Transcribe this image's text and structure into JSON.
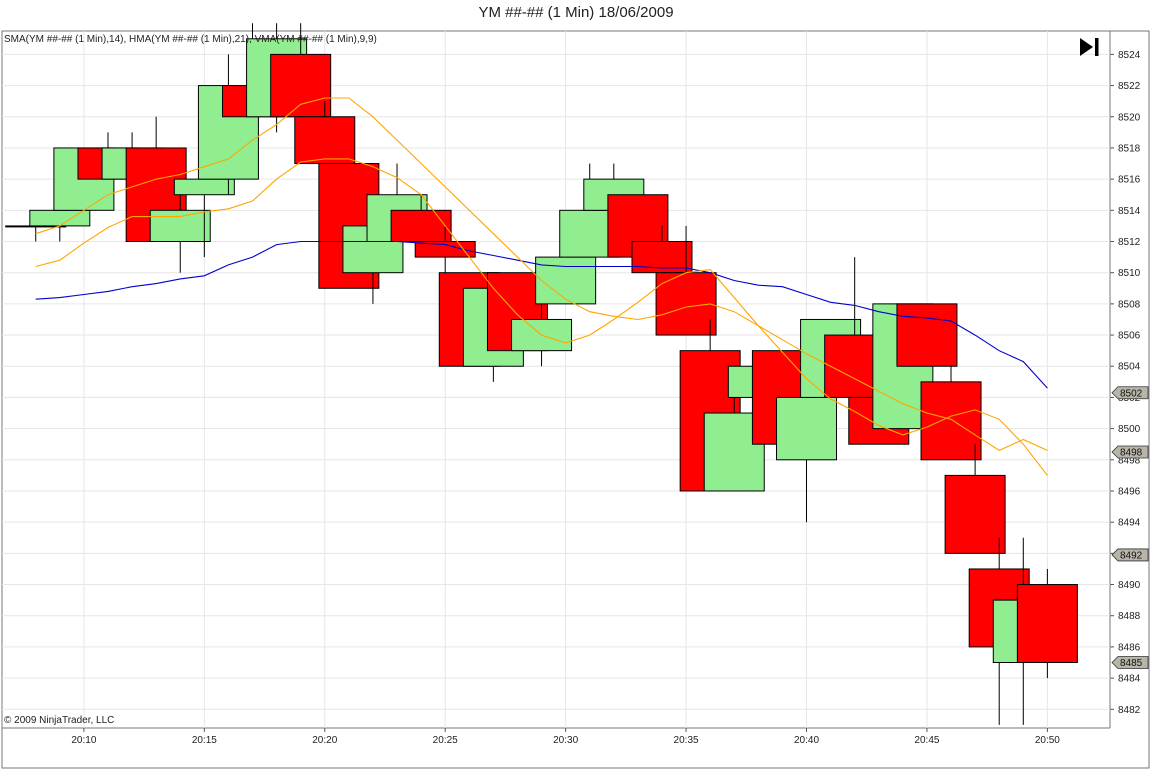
{
  "title": "YM ##-## (1 Min)  18/06/2009",
  "indicator_label": "SMA(YM ##-## (1 Min),14), HMA(YM ##-## (1 Min),21), VMA(YM ##-## (1 Min),9,9)",
  "copyright": "© 2009 NinjaTrader, LLC",
  "colors": {
    "up_fill": "#90ee90",
    "down_fill": "#ff0000",
    "candle_outline": "#000000",
    "sma_line": "#0000cd",
    "hma_line": "#ffa500",
    "vma_line": "#ffa500",
    "grid": "#e6e6e6",
    "price_tag": "#b8b4a8"
  },
  "icons": {
    "play_to_end": "skip-forward-icon"
  },
  "chart_data": {
    "type": "candlestick",
    "title": "YM ##-## (1 Min)  18/06/2009",
    "x_ticks": [
      {
        "t": 10,
        "label": "20:10"
      },
      {
        "t": 15,
        "label": "20:15"
      },
      {
        "t": 20,
        "label": "20:20"
      },
      {
        "t": 25,
        "label": "20:25"
      },
      {
        "t": 30,
        "label": "20:30"
      },
      {
        "t": 35,
        "label": "20:35"
      },
      {
        "t": 40,
        "label": "20:40"
      },
      {
        "t": 45,
        "label": "20:45"
      },
      {
        "t": 50,
        "label": "20:50"
      }
    ],
    "y_ticks": [
      8482,
      8484,
      8486,
      8488,
      8490,
      8492,
      8494,
      8496,
      8498,
      8500,
      8502,
      8504,
      8506,
      8508,
      8510,
      8512,
      8514,
      8516,
      8518,
      8520,
      8522,
      8524
    ],
    "ylim": [
      8480.8,
      8525.5
    ],
    "xlim": [
      6.6,
      52.6
    ],
    "grid": true,
    "candles": [
      {
        "t": 8.0,
        "o": 8513,
        "h": 8513,
        "l": 8512,
        "c": 8513
      },
      {
        "t": 9.0,
        "o": 8513,
        "h": 8514,
        "l": 8512,
        "c": 8514
      },
      {
        "t": 10.0,
        "o": 8514,
        "h": 8518,
        "l": 8514,
        "c": 8518
      },
      {
        "t": 11.0,
        "o": 8518,
        "h": 8519,
        "l": 8516,
        "c": 8516
      },
      {
        "t": 12.0,
        "o": 8516,
        "h": 8519,
        "l": 8516,
        "c": 8518
      },
      {
        "t": 13.0,
        "o": 8518,
        "h": 8520,
        "l": 8512,
        "c": 8512
      },
      {
        "t": 14.0,
        "o": 8512,
        "h": 8515,
        "l": 8510,
        "c": 8514
      },
      {
        "t": 15.0,
        "o": 8515,
        "h": 8517,
        "l": 8511,
        "c": 8516
      },
      {
        "t": 16.0,
        "o": 8516,
        "h": 8524,
        "l": 8515,
        "c": 8522
      },
      {
        "t": 17.0,
        "o": 8522,
        "h": 8526,
        "l": 8520,
        "c": 8520
      },
      {
        "t": 18.0,
        "o": 8520,
        "h": 8526,
        "l": 8519,
        "c": 8525
      },
      {
        "t": 19.0,
        "o": 8524,
        "h": 8526,
        "l": 8519,
        "c": 8520
      },
      {
        "t": 20.0,
        "o": 8520,
        "h": 8521,
        "l": 8517,
        "c": 8517
      },
      {
        "t": 21.0,
        "o": 8517,
        "h": 8517,
        "l": 8509,
        "c": 8509
      },
      {
        "t": 22.0,
        "o": 8510,
        "h": 8514,
        "l": 8508,
        "c": 8513
      },
      {
        "t": 23.0,
        "o": 8512,
        "h": 8517,
        "l": 8512,
        "c": 8515
      },
      {
        "t": 24.0,
        "o": 8514,
        "h": 8515,
        "l": 8511,
        "c": 8512
      },
      {
        "t": 25.0,
        "o": 8512,
        "h": 8513,
        "l": 8510,
        "c": 8511
      },
      {
        "t": 26.0,
        "o": 8510,
        "h": 8510,
        "l": 8504,
        "c": 8504
      },
      {
        "t": 27.0,
        "o": 8504,
        "h": 8510,
        "l": 8503,
        "c": 8509
      },
      {
        "t": 28.0,
        "o": 8510,
        "h": 8510,
        "l": 8505,
        "c": 8505
      },
      {
        "t": 29.0,
        "o": 8505,
        "h": 8508,
        "l": 8504,
        "c": 8507
      },
      {
        "t": 30.0,
        "o": 8508,
        "h": 8512,
        "l": 8508,
        "c": 8511
      },
      {
        "t": 31.0,
        "o": 8511,
        "h": 8517,
        "l": 8511,
        "c": 8514
      },
      {
        "t": 32.0,
        "o": 8514,
        "h": 8517,
        "l": 8511,
        "c": 8516
      },
      {
        "t": 33.0,
        "o": 8515,
        "h": 8515,
        "l": 8511,
        "c": 8511
      },
      {
        "t": 34.0,
        "o": 8512,
        "h": 8513,
        "l": 8510,
        "c": 8510
      },
      {
        "t": 35.0,
        "o": 8510,
        "h": 8513,
        "l": 8506,
        "c": 8506
      },
      {
        "t": 36.0,
        "o": 8505,
        "h": 8507,
        "l": 8496,
        "c": 8496
      },
      {
        "t": 37.0,
        "o": 8496,
        "h": 8503,
        "l": 8496,
        "c": 8501
      },
      {
        "t": 38.0,
        "o": 8502,
        "h": 8504,
        "l": 8501,
        "c": 8504
      },
      {
        "t": 39.0,
        "o": 8505,
        "h": 8505,
        "l": 8499,
        "c": 8499
      },
      {
        "t": 40.0,
        "o": 8498,
        "h": 8502,
        "l": 8494,
        "c": 8502
      },
      {
        "t": 41.0,
        "o": 8502,
        "h": 8507,
        "l": 8502,
        "c": 8507
      },
      {
        "t": 42.0,
        "o": 8506,
        "h": 8511,
        "l": 8502,
        "c": 8502
      },
      {
        "t": 43.0,
        "o": 8502,
        "h": 8504,
        "l": 8499,
        "c": 8499
      },
      {
        "t": 44.0,
        "o": 8500,
        "h": 8508,
        "l": 8500,
        "c": 8508
      },
      {
        "t": 45.0,
        "o": 8508,
        "h": 8508,
        "l": 8504,
        "c": 8504
      },
      {
        "t": 46.0,
        "o": 8503,
        "h": 8504,
        "l": 8498,
        "c": 8498
      },
      {
        "t": 47.0,
        "o": 8497,
        "h": 8499,
        "l": 8492,
        "c": 8492
      },
      {
        "t": 48.0,
        "o": 8491,
        "h": 8493,
        "l": 8481,
        "c": 8486
      },
      {
        "t": 49.0,
        "o": 8485,
        "h": 8493,
        "l": 8481,
        "c": 8489
      },
      {
        "t": 50.0,
        "o": 8490,
        "h": 8491,
        "l": 8484,
        "c": 8485
      }
    ],
    "series": [
      {
        "key": "sma",
        "x": [
          8,
          9,
          10,
          11,
          12,
          13,
          14,
          15,
          16,
          17,
          18,
          19,
          20,
          21,
          22,
          23,
          24,
          25,
          26,
          27,
          28,
          29,
          30,
          31,
          32,
          33,
          34,
          35,
          36,
          37,
          38,
          39,
          40,
          41,
          42,
          43,
          44,
          45,
          46,
          47,
          48,
          49,
          50
        ],
        "y": [
          8508.3,
          8508.4,
          8508.6,
          8508.8,
          8509.1,
          8509.3,
          8509.6,
          8509.8,
          8510.5,
          8511.0,
          8511.8,
          8512.0,
          8512.0,
          8512.0,
          8512.0,
          8512.0,
          8511.9,
          8511.8,
          8511.4,
          8511.1,
          8510.8,
          8510.5,
          8510.4,
          8510.4,
          8510.4,
          8510.4,
          8510.3,
          8510.3,
          8510.0,
          8509.5,
          8509.2,
          8509.1,
          8508.6,
          8508.1,
          8507.9,
          8507.5,
          8507.2,
          8507.1,
          8506.9,
          8506.0,
          8505.0,
          8504.3,
          8502.6
        ]
      },
      {
        "key": "hma",
        "x": [
          8,
          9,
          10,
          11,
          12,
          13,
          14,
          15,
          16,
          17,
          18,
          19,
          20,
          21,
          22,
          23,
          24,
          25,
          26,
          27,
          28,
          29,
          30,
          31,
          32,
          33,
          34,
          35,
          36,
          37,
          38,
          39,
          40,
          41,
          42,
          43,
          44,
          45,
          46,
          47,
          48,
          49,
          50
        ],
        "y": [
          8512.5,
          8513.0,
          8514.0,
          8515.0,
          8515.5,
          8516.0,
          8516.3,
          8516.8,
          8517.3,
          8518.5,
          8519.5,
          8520.8,
          8521.2,
          8521.2,
          8520.0,
          8518.5,
          8517.0,
          8515.5,
          8514.0,
          8512.5,
          8511.0,
          8509.5,
          8508.3,
          8507.5,
          8507.2,
          8507.0,
          8507.3,
          8507.8,
          8508.0,
          8507.5,
          8506.6,
          8505.7,
          8504.8,
          8504.0,
          8503.2,
          8502.4,
          8501.6,
          8501.0,
          8500.6,
          8499.6,
          8498.6,
          8499.3,
          8498.6
        ]
      },
      {
        "key": "vma",
        "x": [
          8,
          9,
          10,
          11,
          12,
          13,
          14,
          15,
          16,
          17,
          18,
          19,
          20,
          21,
          22,
          23,
          24,
          25,
          26,
          27,
          28,
          29,
          30,
          31,
          32,
          33,
          34,
          35,
          36,
          37,
          38,
          39,
          40,
          41,
          42,
          43,
          44,
          45,
          46,
          47,
          48,
          49,
          50
        ],
        "y": [
          8510.4,
          8510.8,
          8511.9,
          8512.9,
          8513.6,
          8513.6,
          8513.6,
          8513.9,
          8514.1,
          8514.6,
          8516.0,
          8517.1,
          8517.3,
          8517.3,
          8516.8,
          8516.1,
          8515.0,
          8513.0,
          8511.0,
          8509.0,
          8507.3,
          8506.0,
          8505.5,
          8506.0,
          8507.0,
          8508.1,
          8509.3,
          8510.0,
          8510.2,
          8508.4,
          8506.6,
          8504.9,
          8503.2,
          8501.9,
          8501.1,
          8500.2,
          8499.6,
          8500.1,
          8500.8,
          8501.2,
          8500.6,
          8499.0,
          8497.0
        ]
      }
    ],
    "price_tags": [
      {
        "label": "8502",
        "value": 8502.3,
        "color": "#b8b4a8"
      },
      {
        "label": "8498",
        "value": 8498.5,
        "color": "#b8b4a8"
      },
      {
        "label": "8492",
        "value": 8491.9,
        "color": "#b8b4a8"
      },
      {
        "label": "8485",
        "value": 8485.0,
        "color": "#b8b4a8"
      }
    ]
  }
}
